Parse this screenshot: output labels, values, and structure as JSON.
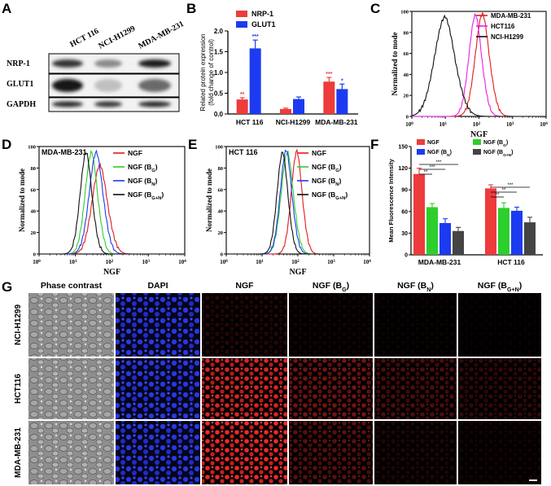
{
  "panels": {
    "A": "A",
    "B": "B",
    "C": "C",
    "D": "D",
    "E": "E",
    "F": "F",
    "G": "G"
  },
  "panelA": {
    "lanes": [
      "HCT 116",
      "NCI-H1299",
      "MDA-MB-231"
    ],
    "rows": [
      "NRP-1",
      "GLUT1",
      "GAPDH"
    ],
    "bands": [
      {
        "row": "NRP-1",
        "intensity": [
          0.85,
          0.45,
          0.95
        ]
      },
      {
        "row": "GLUT1",
        "intensity": [
          1.0,
          0.2,
          0.6
        ]
      },
      {
        "row": "GAPDH",
        "intensity": [
          0.9,
          0.85,
          0.9
        ]
      }
    ]
  },
  "panelB": {
    "chart_data": {
      "type": "bar",
      "categories": [
        "HCT 116",
        "NCI-H1299",
        "MDA-MB-231"
      ],
      "series": [
        {
          "name": "NRP-1",
          "color": "#ee3b3b",
          "values": [
            0.35,
            0.12,
            0.78
          ],
          "errors": [
            0.04,
            0.02,
            0.1
          ],
          "sig": [
            "**",
            "",
            "***"
          ]
        },
        {
          "name": "GLUT1",
          "color": "#1c3bf0",
          "values": [
            1.58,
            0.36,
            0.6
          ],
          "errors": [
            0.2,
            0.05,
            0.12
          ],
          "sig": [
            "***",
            "",
            "*"
          ]
        }
      ],
      "ylabel": "Related protein expression\n(fold change of control)",
      "ylim": [
        0,
        2.0
      ],
      "yticks": [
        "0.0",
        "0.5",
        "1.0",
        "1.5",
        "2.0"
      ]
    }
  },
  "panelC": {
    "chart_data": {
      "type": "line",
      "xlabel": "NGF",
      "ylabel": "Normalized to mode",
      "xscale": "log",
      "xlim": [
        1,
        10000
      ],
      "ylim": [
        0,
        100
      ],
      "yticks": [
        "0",
        "20",
        "40",
        "60",
        "80",
        "100"
      ],
      "xticks": [
        {
          "b": "10",
          "e": "0"
        },
        {
          "b": "10",
          "e": "1"
        },
        {
          "b": "10",
          "e": "2"
        },
        {
          "b": "10",
          "e": "3"
        },
        {
          "b": "10",
          "e": "4"
        }
      ],
      "series": [
        {
          "name": "MDA-MB-231",
          "color": "#e11c1c",
          "center": 130,
          "width": 0.22,
          "peak": 98
        },
        {
          "name": "HCT116",
          "color": "#e81ee8",
          "center": 80,
          "width": 0.2,
          "peak": 97
        },
        {
          "name": "NCI-H1299",
          "color": "#111111",
          "center": 10,
          "width": 0.32,
          "peak": 95
        }
      ]
    }
  },
  "panelD": {
    "chart_data": {
      "type": "line",
      "title": "MDA-MB-231",
      "xlabel": "NGF",
      "ylabel": "Normalized to mode",
      "xscale": "log",
      "xlim": [
        1,
        10000
      ],
      "ylim": [
        0,
        100
      ],
      "yticks": [
        "0",
        "20",
        "40",
        "60",
        "80",
        "100"
      ],
      "xticks": [
        {
          "b": "10",
          "e": "0"
        },
        {
          "b": "10",
          "e": "1"
        },
        {
          "b": "10",
          "e": "2"
        },
        {
          "b": "10",
          "e": "3"
        },
        {
          "b": "10",
          "e": "4"
        }
      ],
      "series": [
        {
          "name": "NGF",
          "sub": "",
          "color": "#e11c1c",
          "center": 48,
          "width": 0.22,
          "peak": 83
        },
        {
          "name": "NGF (B",
          "sub": "G",
          "color": "#2ccf2c",
          "center": 28,
          "width": 0.18,
          "peak": 95
        },
        {
          "name": "NGF (B",
          "sub": "N",
          "color": "#1c3bf0",
          "center": 38,
          "width": 0.2,
          "peak": 95
        },
        {
          "name": "NGF (B",
          "sub": "G+N",
          "color": "#111111",
          "center": 20,
          "width": 0.17,
          "peak": 95
        }
      ]
    }
  },
  "panelE": {
    "chart_data": {
      "type": "line",
      "title": "HCT 116",
      "xlabel": "NGF",
      "ylabel": "Normalized to mode",
      "xscale": "log",
      "xlim": [
        1,
        10000
      ],
      "ylim": [
        0,
        100
      ],
      "yticks": [
        "0",
        "20",
        "40",
        "60",
        "80",
        "100"
      ],
      "xticks": [
        {
          "b": "10",
          "e": "0"
        },
        {
          "b": "10",
          "e": "1"
        },
        {
          "b": "10",
          "e": "2"
        },
        {
          "b": "10",
          "e": "3"
        },
        {
          "b": "10",
          "e": "4"
        }
      ],
      "series": [
        {
          "name": "NGF",
          "sub": "",
          "color": "#e11c1c",
          "center": 95,
          "width": 0.16,
          "peak": 96
        },
        {
          "name": "NGF (B",
          "sub": "G",
          "color": "#2ccf2c",
          "center": 52,
          "width": 0.18,
          "peak": 95
        },
        {
          "name": "NGF (B",
          "sub": "N",
          "color": "#1c3bf0",
          "center": 48,
          "width": 0.17,
          "peak": 97
        },
        {
          "name": "NGF (B",
          "sub": "G+N",
          "color": "#111111",
          "center": 38,
          "width": 0.16,
          "peak": 95
        }
      ]
    }
  },
  "panelF": {
    "chart_data": {
      "type": "bar",
      "ylabel": "Mean Fluorescence Intensity",
      "ylim": [
        0,
        150
      ],
      "yticks": [
        "0",
        "30",
        "60",
        "90",
        "120",
        "150"
      ],
      "categories": [
        "MDA-MB-231",
        "HCT 116"
      ],
      "series": [
        {
          "name": "NGF",
          "sub": "",
          "color": "#ee3b3b",
          "values": [
            112,
            92
          ],
          "errors": [
            8,
            5
          ]
        },
        {
          "name": "NGF (B",
          "sub": "G",
          "color": "#2ccf2c",
          "values": [
            66,
            65
          ],
          "errors": [
            5,
            7
          ]
        },
        {
          "name": "NGF (B",
          "sub": "N",
          "color": "#1c3bf0",
          "values": [
            44,
            61
          ],
          "errors": [
            6,
            5
          ]
        },
        {
          "name": "NGF (B",
          "sub": "G+N",
          "color": "#444444",
          "values": [
            33,
            45
          ],
          "errors": [
            5,
            7
          ]
        }
      ],
      "significance": [
        {
          "group": 0,
          "label": "**"
        },
        {
          "group": 0,
          "label": "***"
        },
        {
          "group": 0,
          "label": "***"
        },
        {
          "group": 1,
          "label": "**"
        },
        {
          "group": 1,
          "label": "**"
        },
        {
          "group": 1,
          "label": "***"
        }
      ]
    }
  },
  "panelG": {
    "columns": [
      {
        "main": "Phase contrast",
        "sub": ""
      },
      {
        "main": "DAPI",
        "sub": ""
      },
      {
        "main": "NGF",
        "sub": ""
      },
      {
        "main": "NGF (B",
        "sub": "G"
      },
      {
        "main": "NGF (B",
        "sub": "N"
      },
      {
        "main": "NGF (B",
        "sub": "G+N"
      }
    ],
    "rows": [
      "NCI-H1299",
      "HCT116",
      "MDA-MB-231"
    ],
    "ngf_intensity": [
      [
        0.15,
        0.08,
        0.05,
        0.04
      ],
      [
        0.85,
        0.45,
        0.3,
        0.2
      ],
      [
        0.95,
        0.35,
        0.12,
        0.08
      ]
    ]
  }
}
